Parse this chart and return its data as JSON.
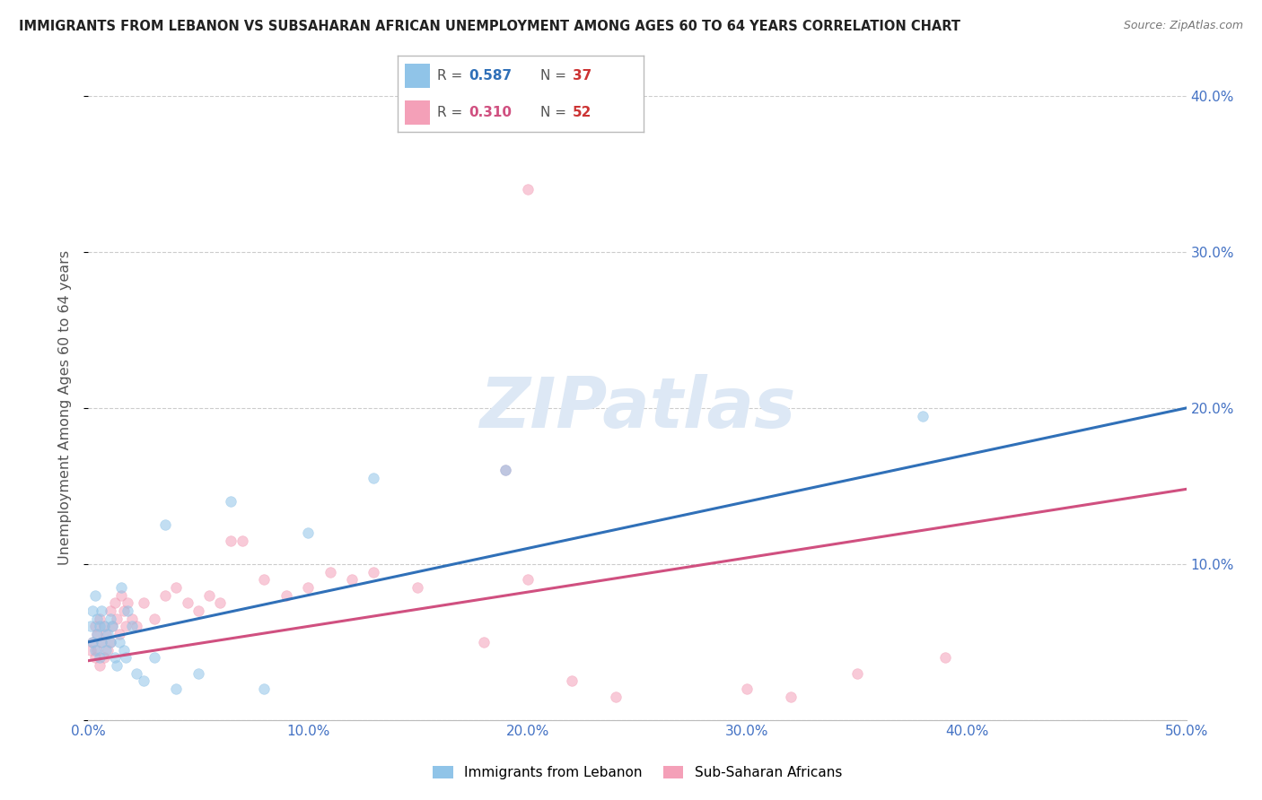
{
  "title": "IMMIGRANTS FROM LEBANON VS SUBSAHARAN AFRICAN UNEMPLOYMENT AMONG AGES 60 TO 64 YEARS CORRELATION CHART",
  "source": "Source: ZipAtlas.com",
  "ylabel": "Unemployment Among Ages 60 to 64 years",
  "xlim": [
    0.0,
    0.5
  ],
  "ylim": [
    0.0,
    0.4
  ],
  "xticks": [
    0.0,
    0.1,
    0.2,
    0.3,
    0.4,
    0.5
  ],
  "xticklabels": [
    "0.0%",
    "10.0%",
    "20.0%",
    "30.0%",
    "40.0%",
    "50.0%"
  ],
  "yticks": [
    0.0,
    0.1,
    0.2,
    0.3,
    0.4
  ],
  "yticklabels": [
    "",
    "10.0%",
    "20.0%",
    "30.0%",
    "40.0%"
  ],
  "legend_r_lebanon": "0.587",
  "legend_n_lebanon": "37",
  "legend_r_subsaharan": "0.310",
  "legend_n_subsaharan": "52",
  "blue_color": "#90c4e8",
  "blue_line_color": "#3070b8",
  "pink_color": "#f4a0b8",
  "pink_line_color": "#d05080",
  "axis_label_color": "#4472c4",
  "title_color": "#222222",
  "background_color": "#ffffff",
  "watermark_color": "#dde8f5",
  "lebanon_x": [
    0.001,
    0.002,
    0.002,
    0.003,
    0.003,
    0.004,
    0.004,
    0.005,
    0.005,
    0.006,
    0.006,
    0.007,
    0.008,
    0.009,
    0.01,
    0.01,
    0.011,
    0.012,
    0.013,
    0.014,
    0.015,
    0.016,
    0.017,
    0.018,
    0.02,
    0.022,
    0.025,
    0.03,
    0.035,
    0.04,
    0.05,
    0.065,
    0.08,
    0.1,
    0.13,
    0.19,
    0.38
  ],
  "lebanon_y": [
    0.06,
    0.05,
    0.07,
    0.045,
    0.08,
    0.055,
    0.065,
    0.04,
    0.06,
    0.05,
    0.07,
    0.06,
    0.045,
    0.055,
    0.05,
    0.065,
    0.06,
    0.04,
    0.035,
    0.05,
    0.085,
    0.045,
    0.04,
    0.07,
    0.06,
    0.03,
    0.025,
    0.04,
    0.125,
    0.02,
    0.03,
    0.14,
    0.02,
    0.12,
    0.155,
    0.16,
    0.195
  ],
  "subsaharan_x": [
    0.001,
    0.002,
    0.003,
    0.003,
    0.004,
    0.004,
    0.005,
    0.005,
    0.006,
    0.007,
    0.007,
    0.008,
    0.009,
    0.01,
    0.01,
    0.011,
    0.012,
    0.013,
    0.014,
    0.015,
    0.016,
    0.017,
    0.018,
    0.02,
    0.022,
    0.025,
    0.03,
    0.035,
    0.04,
    0.045,
    0.05,
    0.055,
    0.06,
    0.065,
    0.07,
    0.08,
    0.09,
    0.1,
    0.11,
    0.12,
    0.13,
    0.15,
    0.18,
    0.2,
    0.22,
    0.24,
    0.3,
    0.32,
    0.35,
    0.39,
    0.2,
    0.19
  ],
  "subsaharan_y": [
    0.045,
    0.05,
    0.04,
    0.06,
    0.045,
    0.055,
    0.035,
    0.065,
    0.05,
    0.04,
    0.06,
    0.055,
    0.045,
    0.05,
    0.07,
    0.06,
    0.075,
    0.065,
    0.055,
    0.08,
    0.07,
    0.06,
    0.075,
    0.065,
    0.06,
    0.075,
    0.065,
    0.08,
    0.085,
    0.075,
    0.07,
    0.08,
    0.075,
    0.115,
    0.115,
    0.09,
    0.08,
    0.085,
    0.095,
    0.09,
    0.095,
    0.085,
    0.05,
    0.09,
    0.025,
    0.015,
    0.02,
    0.015,
    0.03,
    0.04,
    0.34,
    0.16
  ]
}
